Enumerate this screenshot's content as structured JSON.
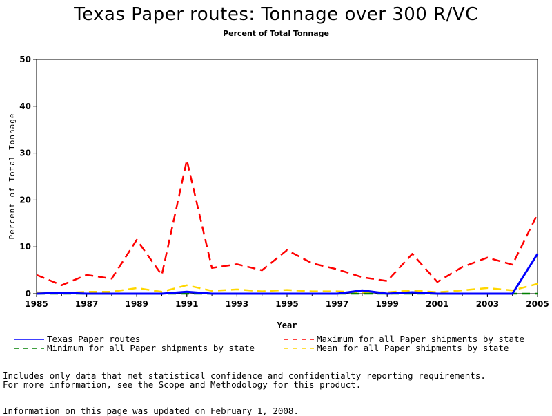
{
  "chart_data": {
    "type": "line",
    "title": "Texas Paper routes: Tonnage over 300 R/VC",
    "subtitle": "Percent of Total Tonnage",
    "xlabel": "Year",
    "ylabel": "Percent of Total Tonnage",
    "xlim": [
      1985,
      2005
    ],
    "ylim": [
      0,
      50
    ],
    "x_ticks": [
      "1985",
      "1987",
      "1989",
      "1991",
      "1993",
      "1995",
      "1997",
      "1999",
      "2001",
      "2003",
      "2005"
    ],
    "y_ticks": [
      "0",
      "10",
      "20",
      "30",
      "40",
      "50"
    ],
    "x": [
      1985,
      1986,
      1987,
      1988,
      1989,
      1990,
      1991,
      1992,
      1993,
      1994,
      1995,
      1996,
      1997,
      1998,
      1999,
      2000,
      2001,
      2002,
      2003,
      2004,
      2005
    ],
    "series": [
      {
        "name": "Texas Paper routes",
        "color": "#0000ff",
        "dash": "solid",
        "values": [
          0,
          0.2,
          0,
          0,
          0,
          0,
          0.4,
          0,
          0,
          0,
          0,
          0,
          0,
          0.7,
          0,
          0.3,
          0,
          0,
          0,
          0,
          8.5
        ]
      },
      {
        "name": "Maximum for all Paper shipments by state",
        "color": "#ff0000",
        "dash": "dashed",
        "values": [
          4,
          1.8,
          4,
          3.2,
          11.5,
          4,
          28.5,
          5.5,
          6.3,
          5,
          9.3,
          6.5,
          5.2,
          3.5,
          2.7,
          8.5,
          2.5,
          5.7,
          7.7,
          6.2,
          17
        ]
      },
      {
        "name": "Minimum for all Paper shipments by state",
        "color": "#008000",
        "dash": "dashed",
        "values": [
          0,
          0,
          0,
          0,
          0,
          0,
          0,
          0,
          0,
          0,
          0,
          0,
          0,
          0,
          0,
          0,
          0,
          0,
          0,
          0,
          0
        ]
      },
      {
        "name": "Mean for all Paper shipments by state",
        "color": "#ffd700",
        "dash": "dashed",
        "values": [
          0.3,
          0.1,
          0.4,
          0.4,
          1.2,
          0.4,
          1.8,
          0.6,
          0.9,
          0.5,
          0.8,
          0.5,
          0.5,
          0.3,
          0.3,
          0.7,
          0.3,
          0.7,
          1.2,
          0.7,
          2.1
        ]
      }
    ],
    "grid": false,
    "legend_position": "bottom"
  },
  "notes": {
    "line1": "Includes only data that met statistical confidence and confidentialty reporting requirements.",
    "line2": "For more information, see the Scope and Methodology for this product.",
    "updated": "Information on this page was updated on February 1, 2008."
  }
}
